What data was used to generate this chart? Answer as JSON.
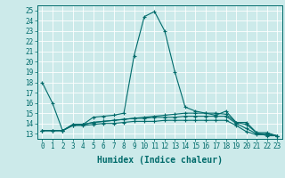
{
  "title": "",
  "xlabel": "Humidex (Indice chaleur)",
  "ylabel": "",
  "background_color": "#cceaea",
  "grid_color": "#ffffff",
  "line_color": "#006b6b",
  "x": [
    0,
    1,
    2,
    3,
    4,
    5,
    6,
    7,
    8,
    9,
    10,
    11,
    12,
    13,
    14,
    15,
    16,
    17,
    18,
    19,
    20,
    21,
    22,
    23
  ],
  "series": [
    [
      18.0,
      16.0,
      13.3,
      13.8,
      13.9,
      14.6,
      14.7,
      14.8,
      15.0,
      20.6,
      24.4,
      24.9,
      23.0,
      19.0,
      15.6,
      15.2,
      15.0,
      14.8,
      15.2,
      14.1,
      13.9,
      13.1,
      12.8,
      12.8
    ],
    [
      13.3,
      13.3,
      13.3,
      13.9,
      13.9,
      14.1,
      14.2,
      14.3,
      14.4,
      14.5,
      14.6,
      14.7,
      14.8,
      14.9,
      15.0,
      15.0,
      15.0,
      15.0,
      14.9,
      14.1,
      14.1,
      13.1,
      13.1,
      12.8
    ],
    [
      13.3,
      13.3,
      13.3,
      13.9,
      13.9,
      14.1,
      14.2,
      14.3,
      14.4,
      14.5,
      14.5,
      14.6,
      14.6,
      14.6,
      14.7,
      14.7,
      14.7,
      14.7,
      14.7,
      14.0,
      13.5,
      13.0,
      13.0,
      12.8
    ],
    [
      13.3,
      13.3,
      13.3,
      13.8,
      13.8,
      13.9,
      14.0,
      14.0,
      14.1,
      14.2,
      14.2,
      14.2,
      14.3,
      14.3,
      14.3,
      14.3,
      14.3,
      14.3,
      14.3,
      13.8,
      13.2,
      12.9,
      12.9,
      12.8
    ]
  ],
  "ylim": [
    12.5,
    25.5
  ],
  "yticks": [
    13,
    14,
    15,
    16,
    17,
    18,
    19,
    20,
    21,
    22,
    23,
    24,
    25
  ],
  "xticks": [
    0,
    1,
    2,
    3,
    4,
    5,
    6,
    7,
    8,
    9,
    10,
    11,
    12,
    13,
    14,
    15,
    16,
    17,
    18,
    19,
    20,
    21,
    22,
    23
  ],
  "marker": "+",
  "markersize": 3,
  "linewidth": 0.8,
  "tick_fontsize": 5.5,
  "xlabel_fontsize": 7
}
